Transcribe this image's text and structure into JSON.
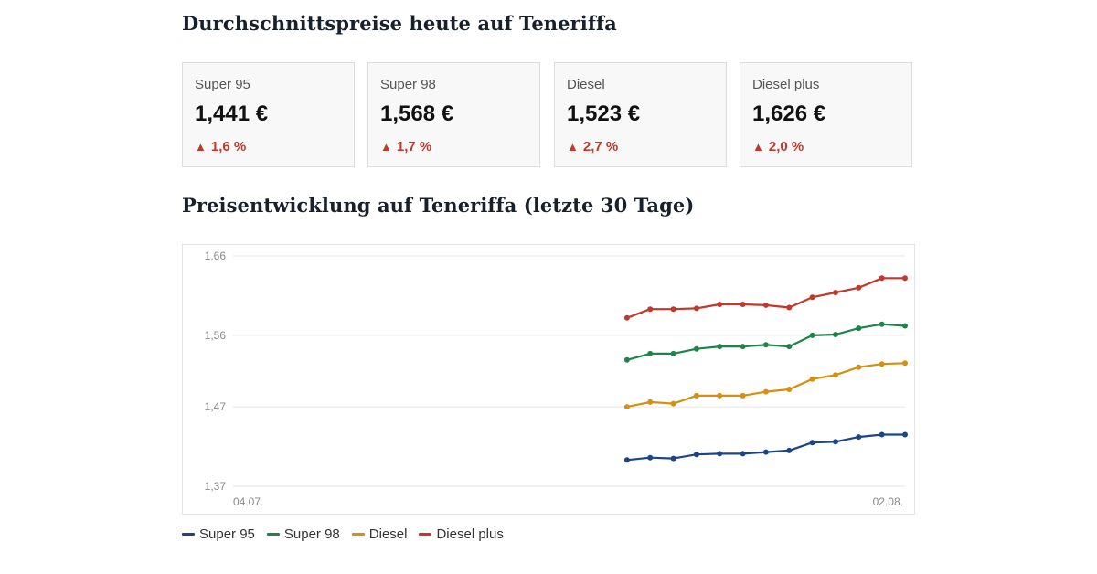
{
  "headline_today": "Durchschnittspreise heute auf Teneriffa",
  "headline_trend": "Preisentwicklung auf Teneriffa (letzte 30 Tage)",
  "cards": [
    {
      "label": "Super 95",
      "price": "1,441 €",
      "change": "1,6 %",
      "direction": "up"
    },
    {
      "label": "Super 98",
      "price": "1,568 €",
      "change": "1,7 %",
      "direction": "up"
    },
    {
      "label": "Diesel",
      "price": "1,523 €",
      "change": "2,7 %",
      "direction": "up"
    },
    {
      "label": "Diesel plus",
      "price": "1,626 €",
      "change": "2,0 %",
      "direction": "up"
    }
  ],
  "colors": {
    "Super 95": "#1c4587",
    "Super 98": "#1e8449",
    "Diesel": "#d4900e",
    "Diesel plus": "#c0392b",
    "change_up": "#c0392b"
  },
  "chart_data": {
    "type": "line",
    "title": "",
    "xlabel": "",
    "ylabel": "",
    "x_start": "04.07.",
    "x_end": "02.08.",
    "x_tick_labels": [
      "04.07.",
      "02.08."
    ],
    "y_ticks": [
      "1,37",
      "1,47",
      "1,56",
      "1,66"
    ],
    "y_tick_values": [
      1.37,
      1.47,
      1.56,
      1.66
    ],
    "ylim": [
      1.37,
      1.66
    ],
    "grid": true,
    "legend_position": "bottom-left",
    "x_days": [
      17,
      18,
      19,
      20,
      21,
      22,
      23,
      24,
      25,
      26,
      27,
      28,
      29
    ],
    "series": [
      {
        "name": "Super 95",
        "values": [
          1.403,
          1.406,
          1.405,
          1.41,
          1.411,
          1.411,
          1.413,
          1.415,
          1.425,
          1.426,
          1.432,
          1.435,
          1.435
        ]
      },
      {
        "name": "Super 98",
        "values": [
          1.529,
          1.537,
          1.537,
          1.543,
          1.546,
          1.546,
          1.548,
          1.546,
          1.56,
          1.561,
          1.569,
          1.574,
          1.572
        ]
      },
      {
        "name": "Diesel",
        "values": [
          1.47,
          1.476,
          1.474,
          1.484,
          1.484,
          1.484,
          1.489,
          1.492,
          1.505,
          1.51,
          1.52,
          1.524,
          1.525
        ]
      },
      {
        "name": "Diesel plus",
        "values": [
          1.582,
          1.593,
          1.593,
          1.594,
          1.599,
          1.599,
          1.598,
          1.595,
          1.608,
          1.614,
          1.62,
          1.632,
          1.632
        ]
      }
    ]
  }
}
